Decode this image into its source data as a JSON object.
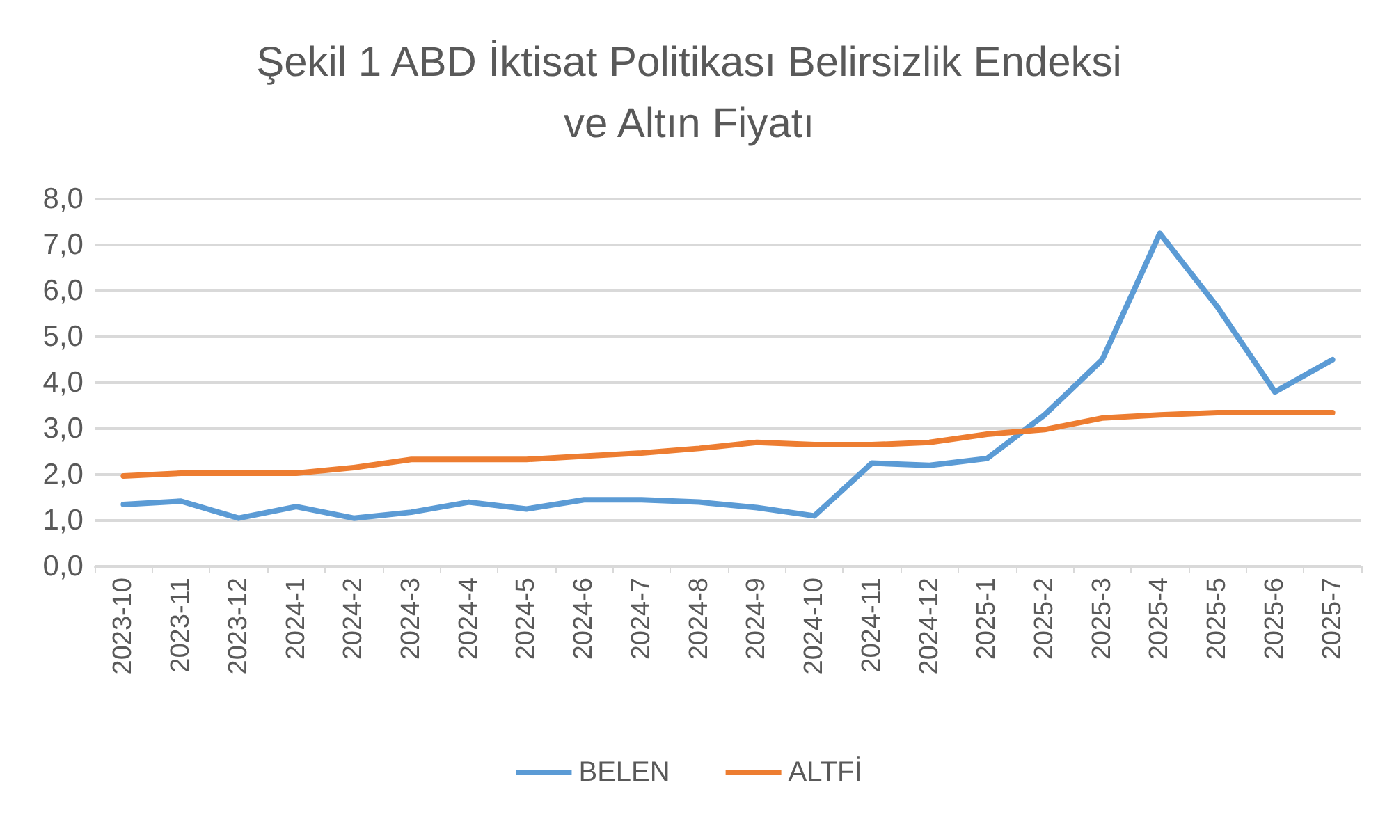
{
  "chart_data": {
    "type": "line",
    "title": "Şekil 1 ABD İktisat Politikası Belirsizlik Endeksi\nve Altın Fiyatı",
    "categories": [
      "2023-10",
      "2023-11",
      "2023-12",
      "2024-1",
      "2024-2",
      "2024-3",
      "2024-4",
      "2024-5",
      "2024-6",
      "2024-7",
      "2024-8",
      "2024-9",
      "2024-10",
      "2024-11",
      "2024-12",
      "2025-1",
      "2025-2",
      "2025-3",
      "2025-4",
      "2025-5",
      "2025-6",
      "2025-7"
    ],
    "series": [
      {
        "name": "BELEN",
        "color": "#5b9bd5",
        "values": [
          1.35,
          1.42,
          1.05,
          1.3,
          1.05,
          1.18,
          1.4,
          1.25,
          1.45,
          1.45,
          1.4,
          1.28,
          1.1,
          2.25,
          2.2,
          2.35,
          3.3,
          4.5,
          7.25,
          5.65,
          3.8,
          4.5
        ]
      },
      {
        "name": "ALTFİ",
        "color": "#ed7d31",
        "values": [
          1.97,
          2.03,
          2.03,
          2.03,
          2.15,
          2.33,
          2.33,
          2.33,
          2.4,
          2.47,
          2.57,
          2.7,
          2.65,
          2.65,
          2.7,
          2.88,
          2.98,
          3.23,
          3.3,
          3.35,
          3.35,
          3.35
        ]
      }
    ],
    "ylim": [
      0,
      8
    ],
    "yticks": [
      {
        "value": 0,
        "label": "0,0"
      },
      {
        "value": 1,
        "label": "1,0"
      },
      {
        "value": 2,
        "label": "2,0"
      },
      {
        "value": 3,
        "label": "3,0"
      },
      {
        "value": 4,
        "label": "4,0"
      },
      {
        "value": 5,
        "label": "5,0"
      },
      {
        "value": 6,
        "label": "6,0"
      },
      {
        "value": 7,
        "label": "7,0"
      },
      {
        "value": 8,
        "label": "8,0"
      }
    ],
    "grid": "y",
    "legend": "bottom",
    "marker": "none",
    "line_style": "solid"
  }
}
